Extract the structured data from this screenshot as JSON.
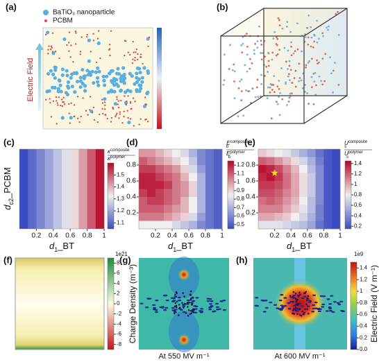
{
  "a": {
    "label": "(a)",
    "legend": [
      "BaTiO₃ nanoparticle",
      "PCBM"
    ],
    "field_label": "Electric Field"
  },
  "b": {
    "label": "(b)"
  },
  "c": {
    "label": "(c)",
    "type": "heatmap",
    "xlabel": {
      "symbol": "d",
      "sub": "1",
      "rest": "_BT"
    },
    "ylabel": {
      "symbol": "d",
      "sub": "c2",
      "rest": "_PCBM"
    },
    "xlim": [
      0,
      1
    ],
    "xticks": [
      0.2,
      0.4,
      0.6,
      0.8,
      1
    ],
    "columns": [
      1.05,
      1.1,
      1.15,
      1.2,
      1.25,
      1.3,
      1.35,
      1.42,
      1.5,
      1.58
    ],
    "colormap": [
      "#3b4cc0",
      "#f0eeee",
      "#b40426"
    ],
    "clim": [
      1.05,
      1.6
    ],
    "cticks": [
      1.1,
      1.2,
      1.3,
      1.4,
      1.5
    ],
    "ctitle": {
      "num": {
        "symbol": "κ",
        "sup": "composite"
      },
      "den": {
        "symbol": "κ",
        "sup": "polymer"
      }
    }
  },
  "d": {
    "label": "(d)",
    "type": "heatmap",
    "xlabel": {
      "symbol": "d",
      "sub": "1",
      "rest": "_BT"
    },
    "xlim": [
      0,
      1
    ],
    "xticks": [
      0.2,
      0.4,
      0.6,
      0.8,
      1
    ],
    "ylim": [
      0,
      1
    ],
    "yticks": [
      0.2,
      0.4,
      0.6,
      0.8
    ],
    "grid": [
      [
        1.0,
        1.0,
        0.95,
        0.9,
        0.85,
        0.8,
        0.7,
        0.6,
        0.55,
        0.5
      ],
      [
        1.1,
        1.05,
        1.0,
        0.95,
        0.9,
        0.85,
        0.75,
        0.6,
        0.55,
        0.5
      ],
      [
        1.15,
        1.15,
        1.1,
        1.05,
        1.0,
        0.9,
        0.8,
        0.65,
        0.55,
        0.5
      ],
      [
        1.2,
        1.2,
        1.15,
        1.1,
        1.05,
        0.95,
        0.85,
        0.7,
        0.55,
        0.5
      ],
      [
        1.2,
        1.2,
        1.2,
        1.15,
        1.05,
        1.0,
        0.9,
        0.7,
        0.55,
        0.5
      ],
      [
        1.15,
        1.2,
        1.15,
        1.1,
        1.05,
        1.0,
        0.9,
        0.7,
        0.55,
        0.5
      ],
      [
        1.1,
        1.15,
        1.15,
        1.1,
        1.05,
        0.95,
        0.85,
        0.7,
        0.55,
        0.5
      ],
      [
        1.1,
        1.1,
        1.1,
        1.05,
        1.0,
        0.95,
        0.85,
        0.7,
        0.55,
        0.5
      ],
      [
        1.05,
        1.05,
        1.05,
        1.0,
        0.95,
        0.9,
        0.8,
        0.65,
        0.55,
        0.5
      ],
      [
        0.85,
        0.85,
        0.85,
        0.85,
        0.8,
        0.75,
        0.7,
        0.6,
        0.55,
        0.5
      ]
    ],
    "colormap": [
      "#3b4cc0",
      "#f0eeee",
      "#b40426"
    ],
    "clim": [
      0.45,
      1.25
    ],
    "cticks": [
      0.5,
      0.6,
      0.7,
      0.8,
      0.9,
      1.0,
      1.1,
      1.2
    ],
    "ctitle": {
      "num": {
        "symbol": "E",
        "sub": "b",
        "sup": "composite"
      },
      "den": {
        "symbol": "E",
        "sub": "b",
        "sup": "polymer"
      }
    }
  },
  "e": {
    "label": "(e)",
    "type": "heatmap",
    "xlabel": {
      "symbol": "d",
      "sub": "1",
      "rest": "_BT"
    },
    "xlim": [
      0,
      1
    ],
    "xticks": [
      0.2,
      0.4,
      0.6,
      0.8,
      1
    ],
    "ylim": [
      0,
      1
    ],
    "yticks": [
      0.2,
      0.4,
      0.6,
      0.8
    ],
    "grid": [
      [
        0.9,
        0.85,
        0.8,
        0.75,
        0.65,
        0.55,
        0.45,
        0.3,
        0.2,
        0.15
      ],
      [
        1.2,
        1.15,
        1.05,
        0.95,
        0.85,
        0.7,
        0.55,
        0.35,
        0.2,
        0.15
      ],
      [
        1.4,
        1.35,
        1.25,
        1.1,
        0.95,
        0.8,
        0.6,
        0.4,
        0.2,
        0.15
      ],
      [
        1.35,
        1.4,
        1.3,
        1.15,
        1.0,
        0.85,
        0.65,
        0.4,
        0.2,
        0.15
      ],
      [
        1.3,
        1.3,
        1.25,
        1.15,
        1.0,
        0.85,
        0.65,
        0.4,
        0.2,
        0.15
      ],
      [
        1.25,
        1.25,
        1.2,
        1.1,
        1.0,
        0.85,
        0.65,
        0.4,
        0.2,
        0.15
      ],
      [
        1.15,
        1.2,
        1.15,
        1.05,
        0.95,
        0.8,
        0.6,
        0.4,
        0.2,
        0.15
      ],
      [
        1.1,
        1.1,
        1.1,
        1.0,
        0.9,
        0.75,
        0.6,
        0.35,
        0.2,
        0.15
      ],
      [
        1.0,
        1.0,
        0.95,
        0.9,
        0.8,
        0.7,
        0.55,
        0.35,
        0.2,
        0.15
      ],
      [
        0.75,
        0.75,
        0.75,
        0.7,
        0.65,
        0.6,
        0.5,
        0.3,
        0.2,
        0.15
      ]
    ],
    "marker": {
      "x": 0.2,
      "y": 0.7,
      "color": "#ffe600"
    },
    "colormap": [
      "#3b4cc0",
      "#f0eeee",
      "#b40426"
    ],
    "clim": [
      0.15,
      1.45
    ],
    "cticks": [
      0.2,
      0.4,
      0.6,
      0.8,
      1.0,
      1.2,
      1.4
    ],
    "ctitle": {
      "num": {
        "symbol": "U",
        "sub": "s",
        "sup": "composite"
      },
      "den": {
        "symbol": "U",
        "sub": "s",
        "sup": "polymer"
      }
    }
  },
  "f": {
    "label": "(f)",
    "colormap": [
      "#c0141c",
      "#fdfde0",
      "#1e8c3c"
    ],
    "clim": [
      -9,
      9
    ],
    "cticks": [
      8,
      6,
      4,
      2,
      0,
      -2,
      -4,
      -6,
      -8
    ],
    "scale": "1e21",
    "ctitle": "Charge Density (m⁻³)"
  },
  "g": {
    "label": "(g)",
    "caption": "At 550 MV m⁻¹"
  },
  "h": {
    "label": "(h)",
    "caption": "At 600 MV m⁻¹",
    "colormap": [
      "#1a1aa0",
      "#2f7fe0",
      "#3cc0c0",
      "#8ad050",
      "#f0e030",
      "#f07020",
      "#c01010"
    ],
    "clim": [
      0,
      1.5
    ],
    "cticks": [
      {
        "value": 0,
        "label": "0.0"
      },
      0.2,
      0.4,
      0.6,
      0.8,
      1.0,
      1.2,
      1.4
    ],
    "scale": "1e9",
    "ctitle": "Electric Field (V m⁻¹)"
  }
}
